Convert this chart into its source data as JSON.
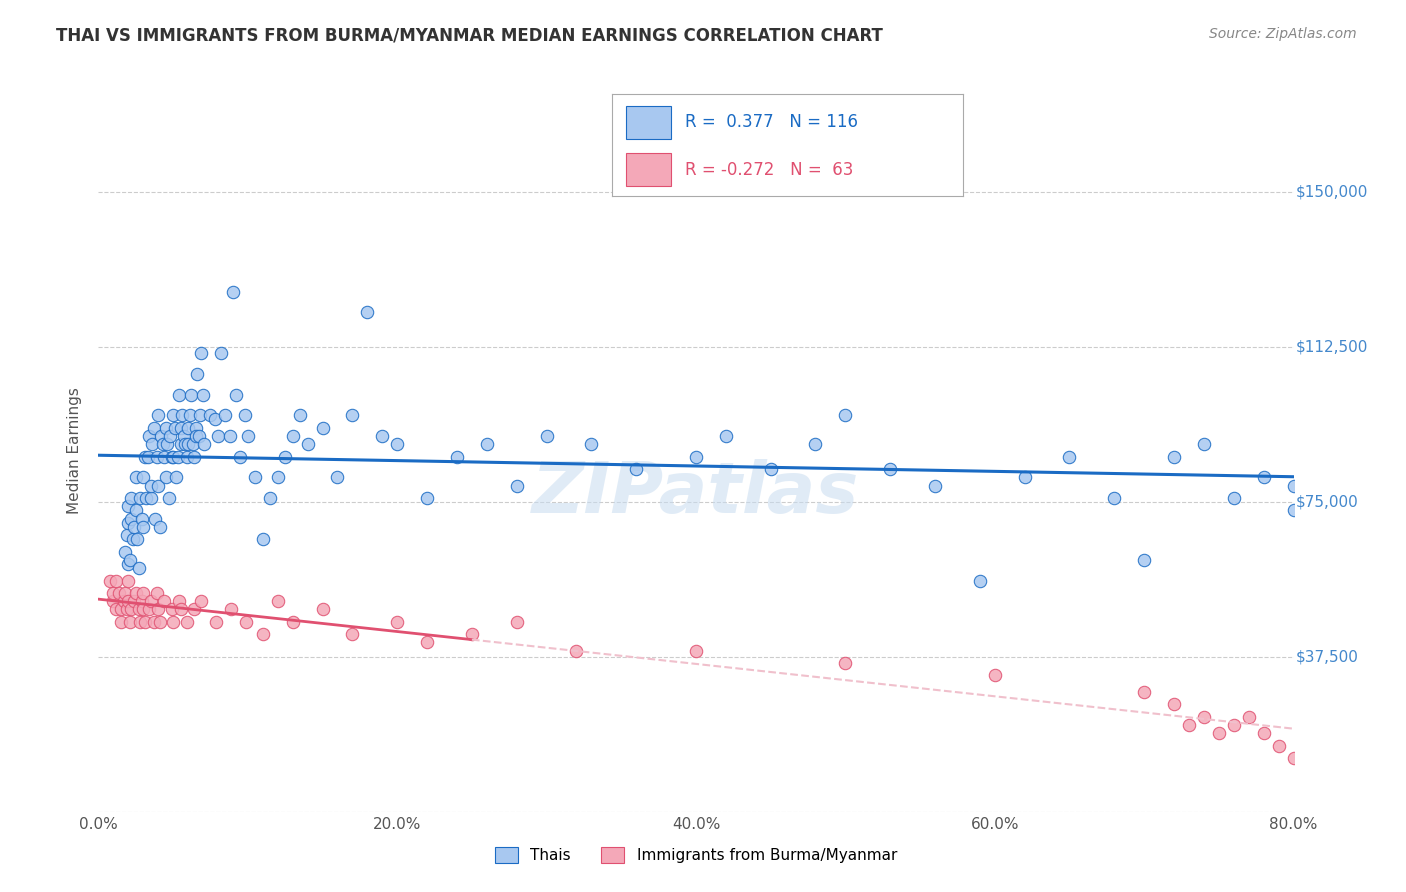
{
  "title": "THAI VS IMMIGRANTS FROM BURMA/MYANMAR MEDIAN EARNINGS CORRELATION CHART",
  "source": "Source: ZipAtlas.com",
  "ylabel": "Median Earnings",
  "watermark": "ZIPatlas",
  "xlim": [
    0.0,
    0.8
  ],
  "ylim": [
    0,
    175000
  ],
  "xtick_labels": [
    "0.0%",
    "20.0%",
    "40.0%",
    "60.0%",
    "80.0%"
  ],
  "xtick_values": [
    0.0,
    0.2,
    0.4,
    0.6,
    0.8
  ],
  "ytick_values": [
    0,
    37500,
    75000,
    112500,
    150000
  ],
  "ytick_labels": [
    "",
    "$37,500",
    "$75,000",
    "$112,500",
    "$150,000"
  ],
  "thai_color": "#a8c8f0",
  "thai_line_color": "#1a6bc4",
  "burma_color": "#f4a8b8",
  "burma_line_color": "#e05070",
  "burma_dashed_color": "#f0c0cc",
  "background_color": "#ffffff",
  "grid_color": "#cccccc",
  "title_color": "#333333",
  "right_label_color": "#4488cc",
  "thai_scatter_x": [
    0.018,
    0.019,
    0.02,
    0.02,
    0.02,
    0.021,
    0.022,
    0.022,
    0.023,
    0.024,
    0.025,
    0.025,
    0.026,
    0.027,
    0.028,
    0.029,
    0.03,
    0.03,
    0.031,
    0.032,
    0.033,
    0.034,
    0.035,
    0.035,
    0.036,
    0.037,
    0.038,
    0.039,
    0.04,
    0.04,
    0.041,
    0.042,
    0.043,
    0.044,
    0.045,
    0.045,
    0.046,
    0.047,
    0.048,
    0.049,
    0.05,
    0.05,
    0.051,
    0.052,
    0.053,
    0.054,
    0.055,
    0.055,
    0.056,
    0.057,
    0.058,
    0.059,
    0.06,
    0.06,
    0.061,
    0.062,
    0.063,
    0.064,
    0.065,
    0.065,
    0.066,
    0.067,
    0.068,
    0.069,
    0.07,
    0.071,
    0.075,
    0.078,
    0.08,
    0.082,
    0.085,
    0.088,
    0.09,
    0.092,
    0.095,
    0.098,
    0.1,
    0.105,
    0.11,
    0.115,
    0.12,
    0.125,
    0.13,
    0.135,
    0.14,
    0.15,
    0.16,
    0.17,
    0.18,
    0.19,
    0.2,
    0.22,
    0.24,
    0.26,
    0.28,
    0.3,
    0.33,
    0.36,
    0.4,
    0.42,
    0.45,
    0.48,
    0.5,
    0.53,
    0.56,
    0.59,
    0.62,
    0.65,
    0.68,
    0.7,
    0.72,
    0.74,
    0.76,
    0.78,
    0.8,
    0.8
  ],
  "thai_scatter_y": [
    63000,
    67000,
    70000,
    60000,
    74000,
    61000,
    71000,
    76000,
    66000,
    69000,
    73000,
    81000,
    66000,
    59000,
    76000,
    71000,
    81000,
    69000,
    86000,
    76000,
    86000,
    91000,
    76000,
    79000,
    89000,
    93000,
    71000,
    86000,
    96000,
    79000,
    69000,
    91000,
    89000,
    86000,
    93000,
    81000,
    89000,
    76000,
    91000,
    86000,
    96000,
    86000,
    93000,
    81000,
    86000,
    101000,
    89000,
    93000,
    96000,
    91000,
    89000,
    86000,
    93000,
    89000,
    96000,
    101000,
    89000,
    86000,
    93000,
    91000,
    106000,
    91000,
    96000,
    111000,
    101000,
    89000,
    96000,
    95000,
    91000,
    111000,
    96000,
    91000,
    126000,
    101000,
    86000,
    96000,
    91000,
    81000,
    66000,
    76000,
    81000,
    86000,
    91000,
    96000,
    89000,
    93000,
    81000,
    96000,
    121000,
    91000,
    89000,
    76000,
    86000,
    89000,
    79000,
    91000,
    89000,
    83000,
    86000,
    91000,
    83000,
    89000,
    96000,
    83000,
    79000,
    56000,
    81000,
    86000,
    76000,
    61000,
    86000,
    89000,
    76000,
    81000,
    79000,
    73000
  ],
  "burma_scatter_x": [
    0.008,
    0.01,
    0.01,
    0.012,
    0.012,
    0.014,
    0.015,
    0.015,
    0.017,
    0.018,
    0.019,
    0.02,
    0.02,
    0.021,
    0.022,
    0.024,
    0.025,
    0.027,
    0.028,
    0.029,
    0.03,
    0.03,
    0.031,
    0.034,
    0.035,
    0.037,
    0.039,
    0.04,
    0.041,
    0.044,
    0.049,
    0.05,
    0.054,
    0.055,
    0.059,
    0.064,
    0.069,
    0.079,
    0.089,
    0.099,
    0.11,
    0.12,
    0.13,
    0.15,
    0.17,
    0.2,
    0.22,
    0.25,
    0.28,
    0.32,
    0.4,
    0.5,
    0.6,
    0.7,
    0.72,
    0.73,
    0.74,
    0.75,
    0.76,
    0.77,
    0.78,
    0.79,
    0.8
  ],
  "burma_scatter_y": [
    56000,
    51000,
    53000,
    49000,
    56000,
    53000,
    49000,
    46000,
    51000,
    53000,
    49000,
    56000,
    51000,
    46000,
    49000,
    51000,
    53000,
    49000,
    46000,
    51000,
    49000,
    53000,
    46000,
    49000,
    51000,
    46000,
    53000,
    49000,
    46000,
    51000,
    49000,
    46000,
    51000,
    49000,
    46000,
    49000,
    51000,
    46000,
    49000,
    46000,
    43000,
    51000,
    46000,
    49000,
    43000,
    46000,
    41000,
    43000,
    46000,
    39000,
    39000,
    36000,
    33000,
    29000,
    26000,
    21000,
    23000,
    19000,
    21000,
    23000,
    19000,
    16000,
    13000
  ]
}
